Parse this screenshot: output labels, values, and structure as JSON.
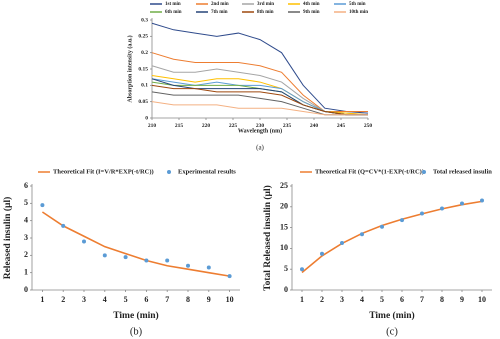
{
  "chart_data": [
    {
      "type": "line",
      "caption": "(a)",
      "x_label": "Wavelength (nm)",
      "y_label": "Absorption intensity (a.u.)",
      "x": [
        210,
        214,
        218,
        222,
        226,
        230,
        234,
        238,
        242,
        246,
        250
      ],
      "xlim": [
        210,
        250
      ],
      "xticks": [
        210,
        215,
        220,
        225,
        230,
        235,
        240,
        245,
        250
      ],
      "ylim": [
        0,
        0.3
      ],
      "yticks": [
        0,
        0.05,
        0.1,
        0.15,
        0.2,
        0.25,
        0.3
      ],
      "series": [
        {
          "name": "1st min",
          "color": "#2f4b8c",
          "mode": "line",
          "values": [
            0.29,
            0.27,
            0.26,
            0.25,
            0.26,
            0.24,
            0.2,
            0.1,
            0.03,
            0.02,
            0.015
          ]
        },
        {
          "name": "2nd min",
          "color": "#ed7d31",
          "mode": "line",
          "values": [
            0.2,
            0.18,
            0.17,
            0.17,
            0.17,
            0.16,
            0.14,
            0.07,
            0.02,
            0.02,
            0.02
          ]
        },
        {
          "name": "3rd min",
          "color": "#a5a5a5",
          "mode": "line",
          "values": [
            0.16,
            0.14,
            0.14,
            0.15,
            0.14,
            0.13,
            0.11,
            0.06,
            0.02,
            0.015,
            0.01
          ]
        },
        {
          "name": "4th min",
          "color": "#ffc000",
          "mode": "line",
          "values": [
            0.13,
            0.12,
            0.11,
            0.12,
            0.12,
            0.11,
            0.09,
            0.05,
            0.02,
            0.015,
            0.01
          ]
        },
        {
          "name": "5th min",
          "color": "#5b9bd5",
          "mode": "line",
          "values": [
            0.12,
            0.11,
            0.1,
            0.11,
            0.1,
            0.1,
            0.09,
            0.05,
            0.02,
            0.01,
            0.01
          ]
        },
        {
          "name": "6th min",
          "color": "#70ad47",
          "mode": "line",
          "values": [
            0.11,
            0.1,
            0.1,
            0.1,
            0.1,
            0.09,
            0.08,
            0.04,
            0.02,
            0.01,
            0.01
          ]
        },
        {
          "name": "7th min",
          "color": "#264478",
          "mode": "line",
          "values": [
            0.12,
            0.1,
            0.09,
            0.09,
            0.09,
            0.09,
            0.08,
            0.04,
            0.02,
            0.01,
            0.01
          ]
        },
        {
          "name": "8th min",
          "color": "#9e480e",
          "mode": "line",
          "values": [
            0.1,
            0.09,
            0.09,
            0.08,
            0.08,
            0.08,
            0.07,
            0.04,
            0.02,
            0.01,
            0.01
          ]
        },
        {
          "name": "9th min",
          "color": "#636363",
          "mode": "line",
          "values": [
            0.08,
            0.07,
            0.07,
            0.07,
            0.07,
            0.06,
            0.05,
            0.03,
            0.01,
            0.01,
            0.01
          ]
        },
        {
          "name": "10th min",
          "color": "#f4b183",
          "mode": "line",
          "values": [
            0.05,
            0.04,
            0.04,
            0.04,
            0.03,
            0.03,
            0.03,
            0.02,
            0.01,
            0.01,
            0.01
          ]
        }
      ]
    },
    {
      "type": "line",
      "caption": "(b)",
      "x_label": "Time (min)",
      "y_label": "Released insulin (µl)",
      "x": [
        1,
        2,
        3,
        4,
        5,
        6,
        7,
        8,
        9,
        10
      ],
      "xlim": [
        0.5,
        10.5
      ],
      "xticks": [
        1,
        2,
        3,
        4,
        5,
        6,
        7,
        8,
        9,
        10
      ],
      "ylim": [
        0,
        6
      ],
      "yticks": [
        0,
        1,
        2,
        3,
        4,
        5,
        6
      ],
      "series": [
        {
          "name": "Theoretical Fit (I=V/R*EXP(-t/RC))",
          "color": "#ed7d31",
          "mode": "line",
          "values": [
            4.5,
            3.7,
            3.1,
            2.5,
            2.1,
            1.7,
            1.4,
            1.2,
            1.0,
            0.8
          ]
        },
        {
          "name": "Experimental  results",
          "color": "#5b9bd5",
          "mode": "markers",
          "values": [
            4.9,
            3.7,
            2.8,
            2.0,
            1.9,
            1.7,
            1.7,
            1.4,
            1.3,
            0.8
          ]
        }
      ]
    },
    {
      "type": "line",
      "caption": "(c)",
      "x_label": "Time (min)",
      "y_label": "Total Released insulin (µl)",
      "x": [
        1,
        2,
        3,
        4,
        5,
        6,
        7,
        8,
        9,
        10
      ],
      "xlim": [
        0.5,
        10.5
      ],
      "xticks": [
        1,
        2,
        3,
        4,
        5,
        6,
        7,
        8,
        9,
        10
      ],
      "ylim": [
        0,
        25
      ],
      "yticks": [
        0,
        5,
        10,
        15,
        20,
        25
      ],
      "series": [
        {
          "name": "Theoretical Fit (Q=CV*(1-EXP(-t/RC))",
          "color": "#ed7d31",
          "mode": "line",
          "values": [
            4.2,
            8.2,
            11.2,
            13.6,
            15.5,
            17.0,
            18.3,
            19.5,
            20.5,
            21.3
          ]
        },
        {
          "name": "Total released insulin",
          "color": "#5b9bd5",
          "mode": "markers",
          "values": [
            5.0,
            8.7,
            11.3,
            13.4,
            15.2,
            16.8,
            18.4,
            19.6,
            20.8,
            21.5
          ]
        }
      ]
    }
  ]
}
